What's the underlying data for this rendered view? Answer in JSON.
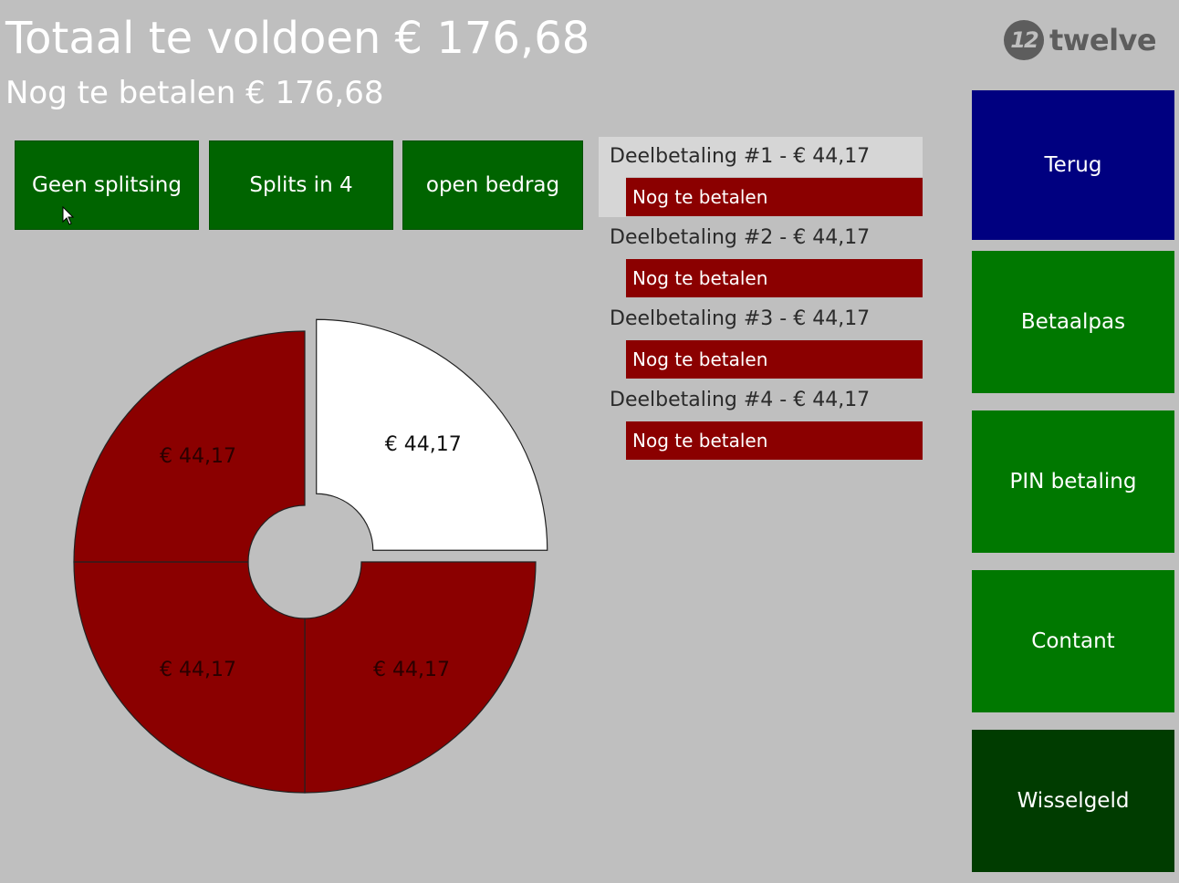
{
  "header": {
    "title": "Totaal te voldoen € 176,68",
    "subtitle": "Nog te betalen € 176,68"
  },
  "logo": {
    "mark": "12",
    "text": "twelve"
  },
  "split_buttons": [
    {
      "label": "Geen splitsing"
    },
    {
      "label": "Splits in 4"
    },
    {
      "label": "open bedrag"
    }
  ],
  "partial_payments": [
    {
      "title": "Deelbetaling #1 - € 44,17",
      "status": "Nog te betalen",
      "selected": true
    },
    {
      "title": "Deelbetaling #2 - € 44,17",
      "status": "Nog te betalen",
      "selected": false
    },
    {
      "title": "Deelbetaling #3 - € 44,17",
      "status": "Nog te betalen",
      "selected": false
    },
    {
      "title": "Deelbetaling #4 - € 44,17",
      "status": "Nog te betalen",
      "selected": false
    }
  ],
  "side_buttons": [
    {
      "label": "Terug",
      "color": "#000080"
    },
    {
      "label": "Betaalpas",
      "color": "#007800"
    },
    {
      "label": "PIN betaling",
      "color": "#007800"
    },
    {
      "label": "Contant",
      "color": "#007800"
    },
    {
      "label": "Wisselgeld",
      "color": "#003c00"
    }
  ],
  "chart_data": {
    "type": "pie",
    "donut": true,
    "slices": [
      {
        "label": "€ 44,17",
        "value": 44.17,
        "color": "#ffffff",
        "selected": true
      },
      {
        "label": "€ 44,17",
        "value": 44.17,
        "color": "#8b0000",
        "selected": false
      },
      {
        "label": "€ 44,17",
        "value": 44.17,
        "color": "#8b0000",
        "selected": false
      },
      {
        "label": "€ 44,17",
        "value": 44.17,
        "color": "#8b0000",
        "selected": false
      }
    ],
    "colors": {
      "paid_selected": "#ffffff",
      "unpaid": "#8b0000",
      "label_on_dark": "#000000"
    }
  }
}
